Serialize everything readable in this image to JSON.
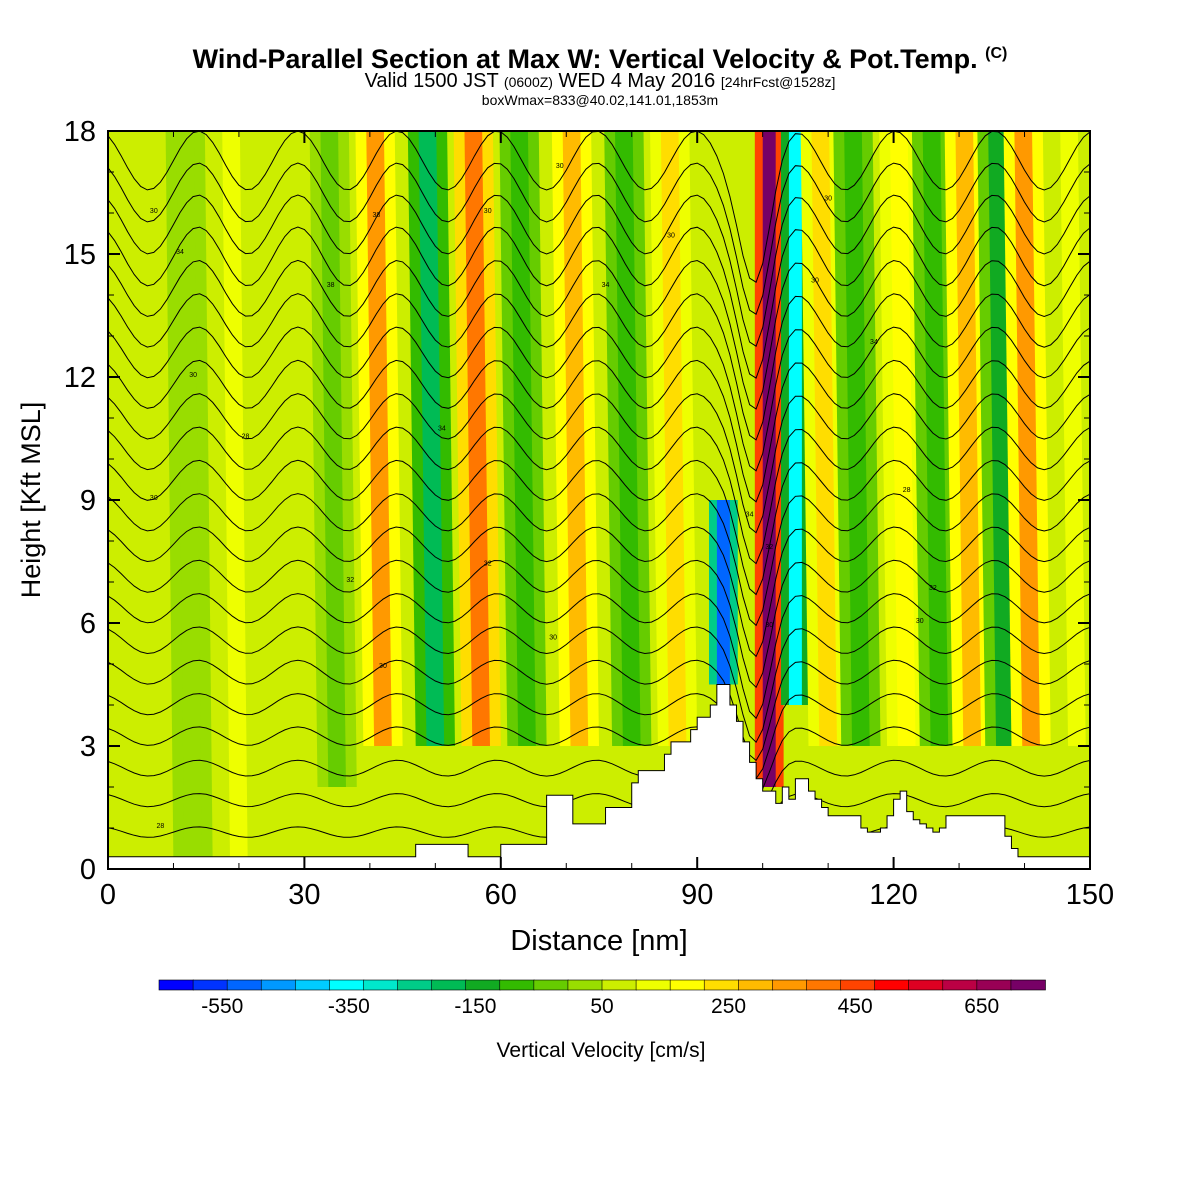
{
  "title": {
    "main": "Wind-Parallel Section at Max W: Vertical Velocity & Pot.Temp.",
    "copyright": "(C)",
    "valid_prefix": "Valid 1500 JST",
    "utc": "(0600Z)",
    "valid_date": "WED 4 May 2016",
    "forecast": "[24hrFcst@1528z]",
    "boxinfo": "boxWmax=833@40.02,141.01,1853m"
  },
  "chart_data": {
    "type": "heatmap",
    "title": "Wind-Parallel Section at Max W: Vertical Velocity & Pot.Temp.",
    "xlabel": "Distance [nm]",
    "ylabel": "Height [Kft MSL]",
    "xlim": [
      0,
      150
    ],
    "ylim": [
      0,
      18
    ],
    "x_ticks": [
      0,
      30,
      60,
      90,
      120,
      150
    ],
    "y_ticks": [
      0,
      3,
      6,
      9,
      12,
      15,
      18
    ],
    "grid": false,
    "colorbar": {
      "label": "Vertical Velocity [cm/s]",
      "tick_values": [
        -550,
        -350,
        -150,
        50,
        250,
        450,
        650
      ],
      "tick_labels": [
        "-550",
        "-350",
        "-150",
        "50",
        "250",
        "450",
        "650"
      ],
      "min": -650,
      "max": 750,
      "interval": 50,
      "colors": [
        "#0000ff",
        "#0033ff",
        "#0066ff",
        "#0099ff",
        "#00ccff",
        "#00ffff",
        "#00e8cc",
        "#00cc88",
        "#00bb55",
        "#11aa22",
        "#33bb00",
        "#66cc00",
        "#99dd00",
        "#ccee00",
        "#eeff00",
        "#ffff00",
        "#ffdd00",
        "#ffbb00",
        "#ff9900",
        "#ff7700",
        "#ff4400",
        "#ff0000",
        "#dd0022",
        "#bb0044",
        "#990055",
        "#770066"
      ]
    },
    "terrain_profile": {
      "x": [
        0,
        10,
        20,
        30,
        40,
        46,
        47,
        54,
        55,
        59,
        60,
        66,
        67,
        70,
        71,
        75,
        76,
        80,
        81,
        85,
        86,
        89,
        90,
        92,
        93,
        94,
        95,
        96,
        97,
        98,
        99,
        100,
        101,
        102,
        103,
        104,
        105,
        106,
        107,
        108,
        109,
        110,
        115,
        116,
        118,
        119,
        120,
        121,
        122,
        123,
        124,
        125,
        126,
        127,
        128,
        130,
        131,
        134,
        135,
        137,
        138,
        139,
        140,
        142,
        150
      ],
      "height": [
        0.3,
        0.3,
        0.3,
        0.3,
        0.3,
        0.3,
        0.6,
        0.6,
        0.3,
        0.3,
        0.6,
        0.6,
        1.8,
        1.8,
        1.1,
        1.1,
        1.5,
        2.1,
        2.4,
        2.8,
        3.1,
        3.4,
        3.7,
        4.0,
        4.5,
        4.5,
        4.0,
        3.6,
        3.1,
        2.6,
        2.2,
        1.9,
        1.9,
        1.6,
        2.0,
        1.7,
        2.2,
        2.2,
        1.9,
        1.7,
        1.5,
        1.3,
        1.0,
        0.9,
        1.0,
        1.3,
        1.7,
        1.9,
        1.4,
        1.2,
        1.1,
        1.0,
        0.9,
        1.0,
        1.3,
        1.3,
        1.3,
        1.3,
        1.3,
        0.8,
        0.5,
        0.3,
        0.3,
        0.3,
        0.3
      ]
    },
    "vertical_velocity_bands": [
      {
        "x_center": 5,
        "height_range": [
          0,
          18
        ],
        "w_cm_s": 0
      },
      {
        "x_center": 13,
        "height_range": [
          0,
          18
        ],
        "w_cm_s": -50
      },
      {
        "x_center": 20,
        "height_range": [
          0,
          18
        ],
        "w_cm_s": 50
      },
      {
        "x_center": 27,
        "height_range": [
          2,
          18
        ],
        "w_cm_s": 0
      },
      {
        "x_center": 35,
        "height_range": [
          2,
          18
        ],
        "w_cm_s": -100
      },
      {
        "x_center": 42,
        "height_range": [
          3,
          18
        ],
        "w_cm_s": 250
      },
      {
        "x_center": 50,
        "height_range": [
          3,
          18
        ],
        "w_cm_s": -250
      },
      {
        "x_center": 57,
        "height_range": [
          3,
          18
        ],
        "w_cm_s": 300
      },
      {
        "x_center": 64,
        "height_range": [
          3,
          18
        ],
        "w_cm_s": -150
      },
      {
        "x_center": 72,
        "height_range": [
          3,
          18
        ],
        "w_cm_s": 200
      },
      {
        "x_center": 80,
        "height_range": [
          3,
          18
        ],
        "w_cm_s": -150
      },
      {
        "x_center": 87,
        "height_range": [
          3,
          18
        ],
        "w_cm_s": 150
      },
      {
        "x_center": 94,
        "height_range": [
          4.5,
          9
        ],
        "w_cm_s": -550
      },
      {
        "x_center": 101,
        "height_range": [
          2,
          18
        ],
        "w_cm_s": 700
      },
      {
        "x_center": 105,
        "height_range": [
          4,
          18
        ],
        "w_cm_s": -400
      },
      {
        "x_center": 110,
        "height_range": [
          3,
          18
        ],
        "w_cm_s": 150
      },
      {
        "x_center": 115,
        "height_range": [
          3,
          18
        ],
        "w_cm_s": -150
      },
      {
        "x_center": 122,
        "height_range": [
          3,
          18
        ],
        "w_cm_s": 100
      },
      {
        "x_center": 127,
        "height_range": [
          3,
          18
        ],
        "w_cm_s": -150
      },
      {
        "x_center": 132,
        "height_range": [
          3,
          18
        ],
        "w_cm_s": 200
      },
      {
        "x_center": 137,
        "height_range": [
          3,
          18
        ],
        "w_cm_s": -200
      },
      {
        "x_center": 141,
        "height_range": [
          3,
          18
        ],
        "w_cm_s": 250
      },
      {
        "x_center": 148,
        "height_range": [
          3,
          18
        ],
        "w_cm_s": 50
      }
    ],
    "potential_temperature_contours_K": [
      286,
      288,
      290,
      292,
      294,
      296,
      298,
      300,
      302,
      304,
      306,
      308,
      310,
      312,
      314,
      316,
      318,
      320,
      322,
      324,
      326,
      328
    ],
    "contour_labels": [
      {
        "text": "30",
        "x": 7,
        "y": 16.0
      },
      {
        "text": "34",
        "x": 11,
        "y": 15.0
      },
      {
        "text": "38",
        "x": 34,
        "y": 14.2
      },
      {
        "text": "30",
        "x": 13,
        "y": 12.0
      },
      {
        "text": "38",
        "x": 41,
        "y": 15.9
      },
      {
        "text": "30",
        "x": 58,
        "y": 16.0
      },
      {
        "text": "30",
        "x": 69,
        "y": 17.1
      },
      {
        "text": "34",
        "x": 76,
        "y": 14.2
      },
      {
        "text": "30",
        "x": 86,
        "y": 15.4
      },
      {
        "text": "30",
        "x": 110,
        "y": 16.3
      },
      {
        "text": "30",
        "x": 108,
        "y": 14.3
      },
      {
        "text": "34",
        "x": 117,
        "y": 12.8
      },
      {
        "text": "30",
        "x": 7,
        "y": 9.0
      },
      {
        "text": "28",
        "x": 21,
        "y": 10.5
      },
      {
        "text": "32",
        "x": 37,
        "y": 7.0
      },
      {
        "text": "30",
        "x": 42,
        "y": 4.9
      },
      {
        "text": "34",
        "x": 51,
        "y": 10.7
      },
      {
        "text": "32",
        "x": 58,
        "y": 7.4
      },
      {
        "text": "30",
        "x": 68,
        "y": 5.6
      },
      {
        "text": "34",
        "x": 98,
        "y": 8.6
      },
      {
        "text": "32",
        "x": 101,
        "y": 7.8
      },
      {
        "text": "30",
        "x": 101,
        "y": 5.9
      },
      {
        "text": "28",
        "x": 8,
        "y": 1.0
      },
      {
        "text": "30",
        "x": 124,
        "y": 6.0
      },
      {
        "text": "32",
        "x": 126,
        "y": 6.8
      },
      {
        "text": "28",
        "x": 122,
        "y": 9.2
      }
    ]
  }
}
